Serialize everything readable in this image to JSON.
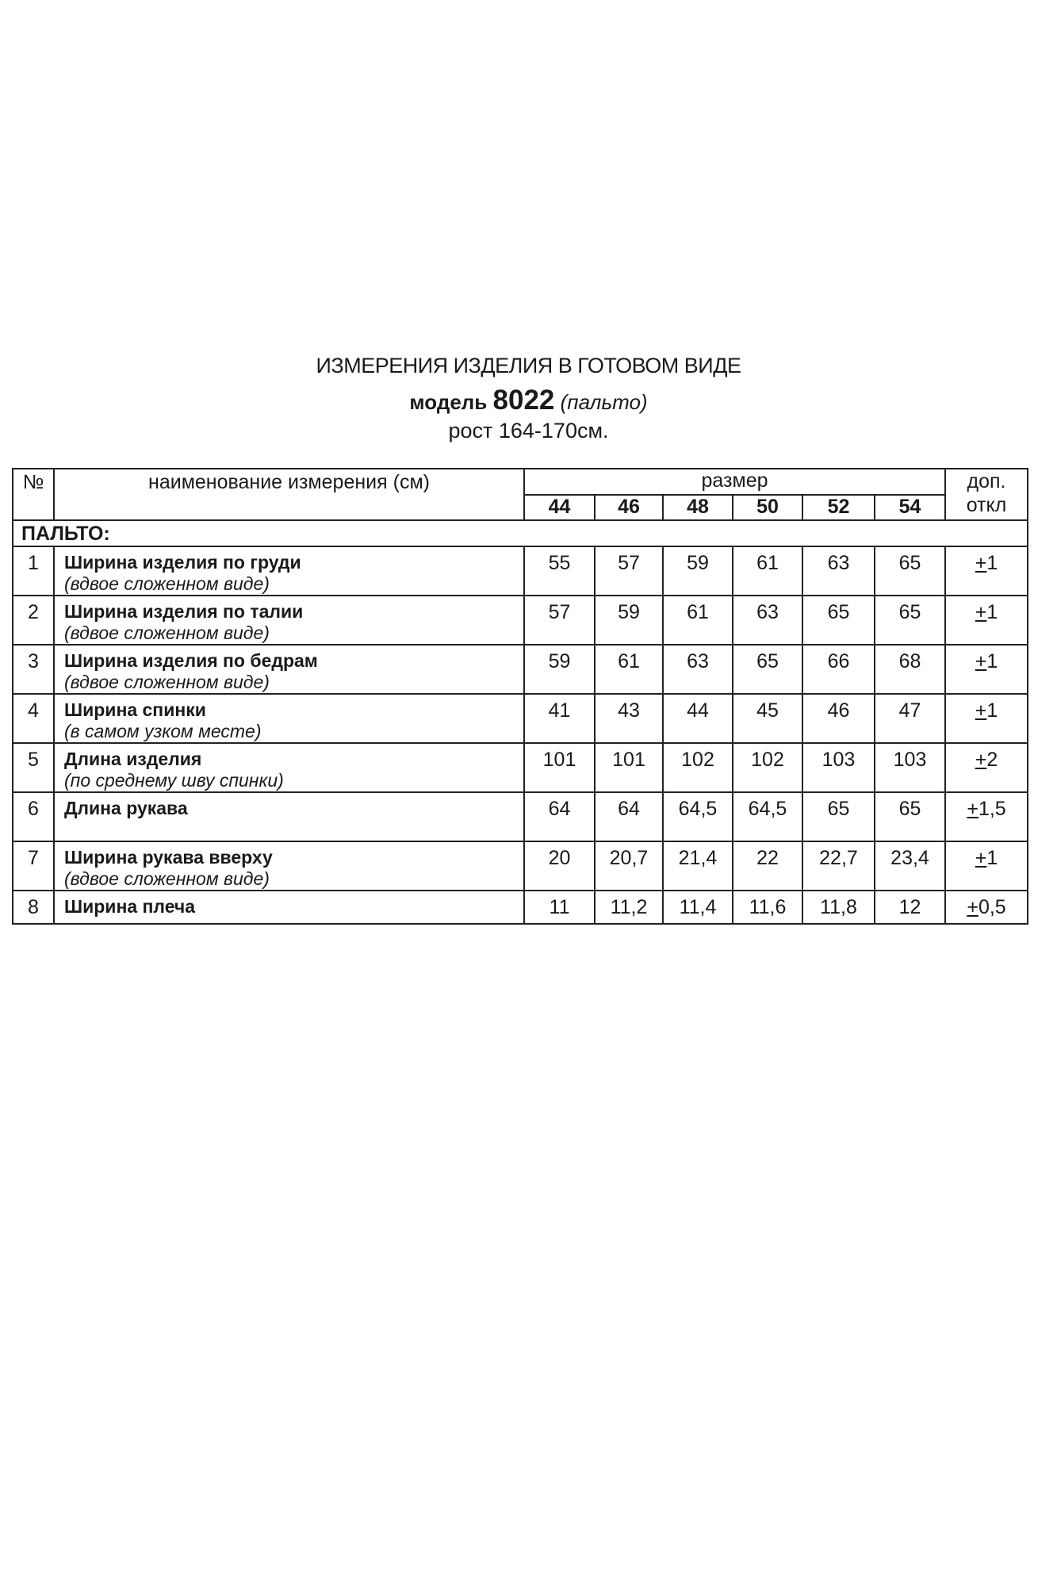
{
  "title": "ИЗМЕРЕНИЯ ИЗДЕЛИЯ В ГОТОВОМ ВИДЕ",
  "model_label": "модель",
  "model_number": "8022",
  "model_type": "(пальто)",
  "height": "рост 164-170см.",
  "table": {
    "col_no": "№",
    "col_name": "наименование измерения (см)",
    "col_size": "размер",
    "col_tol_1": "доп.",
    "col_tol_2": "откл",
    "sizes": [
      "44",
      "46",
      "48",
      "50",
      "52",
      "54"
    ],
    "section": "ПАЛЬТО:",
    "rows": [
      {
        "no": "1",
        "name": "Ширина изделия по груди",
        "note": "(вдвое сложенном виде)",
        "values": [
          "55",
          "57",
          "59",
          "61",
          "63",
          "65"
        ],
        "tol": "+1"
      },
      {
        "no": "2",
        "name": "Ширина изделия по талии",
        "note": "(вдвое сложенном виде)",
        "values": [
          "57",
          "59",
          "61",
          "63",
          "65",
          "65"
        ],
        "tol": "+1"
      },
      {
        "no": "3",
        "name": "Ширина изделия по бедрам",
        "note": "(вдвое сложенном виде)",
        "values": [
          "59",
          "61",
          "63",
          "65",
          "66",
          "68"
        ],
        "tol": "+1"
      },
      {
        "no": "4",
        "name": "Ширина спинки",
        "note": " (в самом узком месте)",
        "values": [
          "41",
          "43",
          "44",
          "45",
          "46",
          "47"
        ],
        "tol": "+1"
      },
      {
        "no": "5",
        "name": "Длина изделия",
        "note": " (по среднему шву спинки)",
        "values": [
          "101",
          "101",
          "102",
          "102",
          "103",
          "103"
        ],
        "tol": "+2"
      },
      {
        "no": "6",
        "name": "Длина рукава",
        "note": "",
        "values": [
          "64",
          "64",
          "64,5",
          "64,5",
          "65",
          "65"
        ],
        "tol": "+1,5"
      },
      {
        "no": "7",
        "name": "Ширина рукава вверху",
        "note": "(вдвое сложенном виде)",
        "values": [
          "20",
          "20,7",
          "21,4",
          "22",
          "22,7",
          "23,4"
        ],
        "tol": "+1"
      },
      {
        "no": "8",
        "name": "Ширина плеча",
        "note": "",
        "values": [
          "11",
          "11,2",
          "11,4",
          "11,6",
          "11,8",
          "12"
        ],
        "tol": "+0,5"
      }
    ]
  }
}
